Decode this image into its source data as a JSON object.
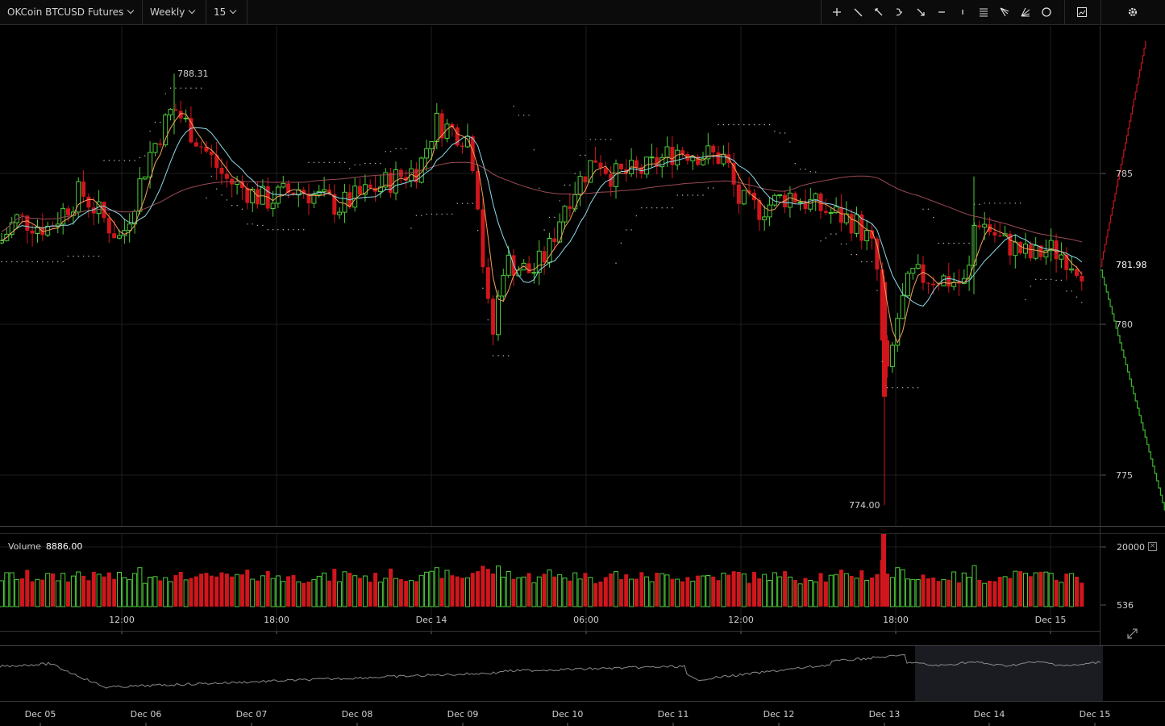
{
  "toolbar": {
    "symbol": "OKCoin BTCUSD Futures",
    "range": "Weekly",
    "interval": "15",
    "tools": [
      "crosshair-icon",
      "trendline-icon",
      "ray-icon",
      "curve-icon",
      "arrow-icon",
      "horizontal-line-icon",
      "vertical-line-icon",
      "fib-icon",
      "pitchfork-icon",
      "fan-icon",
      "circle-icon"
    ],
    "screenshot_icon": "chart-snapshot-icon",
    "settings_icon": "gear-icon"
  },
  "price_axis": {
    "ticks": [
      "785",
      "780",
      "775"
    ],
    "current": "781.98"
  },
  "annotations": {
    "high": "788.31",
    "low": "774.00"
  },
  "volume": {
    "label": "Volume",
    "value": "8886.00",
    "ticks": [
      "20000",
      "536"
    ]
  },
  "time_axis": [
    "12:00",
    "18:00",
    "Dec 14",
    "06:00",
    "12:00",
    "18:00",
    "Dec 15"
  ],
  "navigator_axis": [
    "Dec 05",
    "Dec 06",
    "Dec 07",
    "Dec 08",
    "Dec 09",
    "Dec 10",
    "Dec 11",
    "Dec 12",
    "Dec 13",
    "Dec 14",
    "Dec 15"
  ],
  "colors": {
    "up": "#4ccc3a",
    "down": "#d0161c",
    "ma_fast": "#f5a05a",
    "ma_mid": "#8fd8e8",
    "ma_slow": "#9a4a55",
    "grid": "#1e1e1e"
  },
  "chart_data": {
    "type": "candlestick",
    "series": [
      {
        "name": "Volume",
        "last": 8886.0
      }
    ],
    "ylim": [
      773,
      790
    ],
    "x": [
      "12:00",
      "18:00",
      "Dec 14",
      "06:00",
      "12:00",
      "18:00",
      "Dec 15"
    ],
    "notable": {
      "high": 788.31,
      "low": 774.0,
      "last": 781.98
    }
  }
}
